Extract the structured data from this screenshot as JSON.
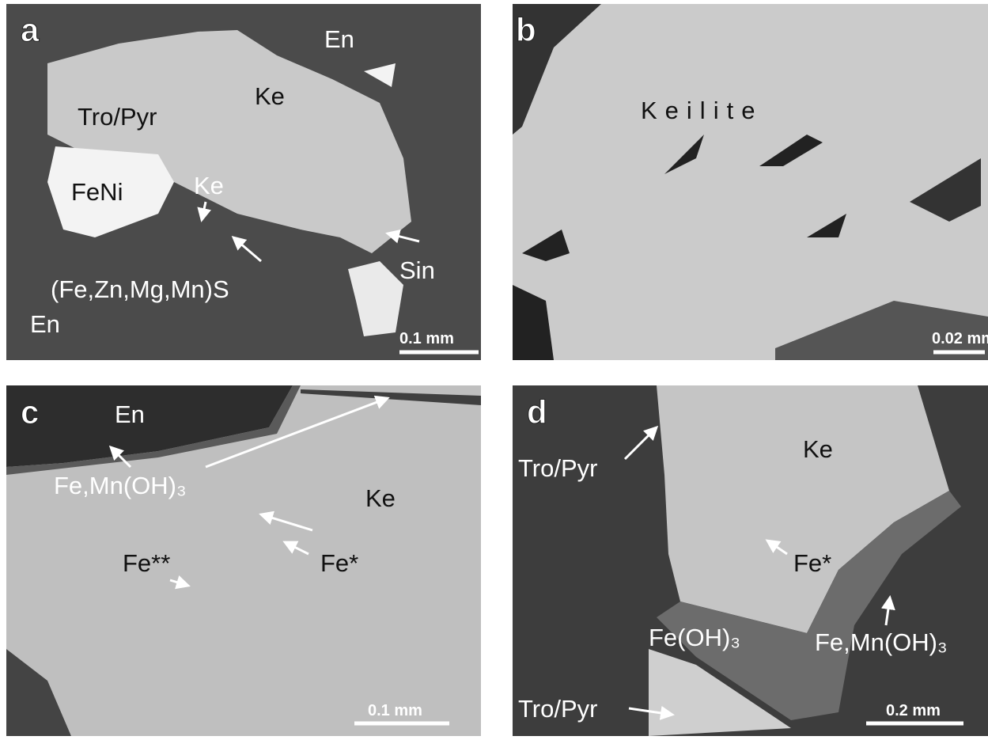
{
  "panels": [
    {
      "letter": "a",
      "labels": [
        "En",
        "Tro/Pyr",
        "Ke",
        "FeNi",
        "Ke",
        "(Fe,Zn,Mg,Mn)S",
        "Sin",
        "En"
      ],
      "scale_bar": "0.1 mm"
    },
    {
      "letter": "b",
      "labels": [
        "Keilite"
      ],
      "scale_bar": "0.02 mm"
    },
    {
      "letter": "c",
      "labels": [
        "En",
        "Fe,Mn(OH)₃",
        "Ke",
        "Fe**",
        "Fe*"
      ],
      "scale_bar": "0.1 mm"
    },
    {
      "letter": "d",
      "labels": [
        "Tro/Pyr",
        "Ke",
        "Fe*",
        "Fe(OH)₃",
        "Fe,Mn(OH)₃",
        "Tro/Pyr"
      ],
      "scale_bar": "0.2 mm"
    }
  ]
}
